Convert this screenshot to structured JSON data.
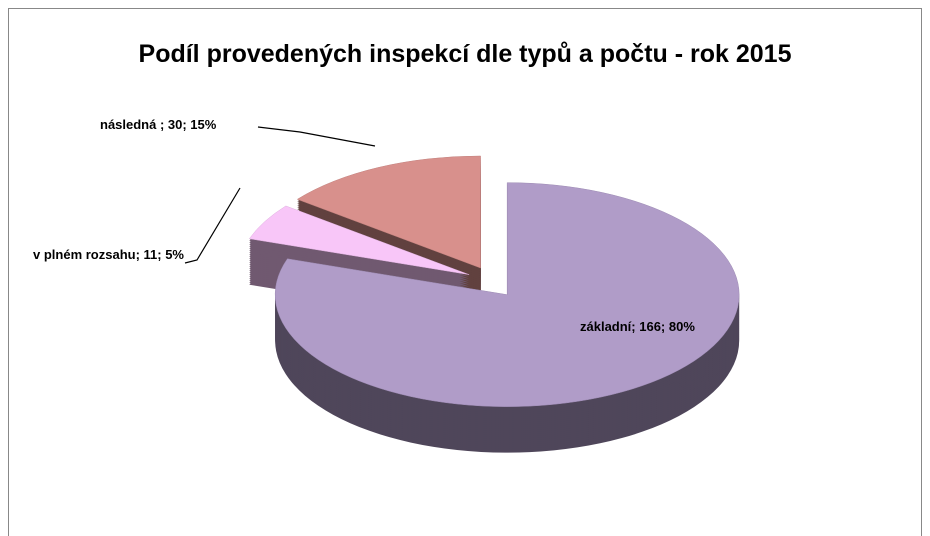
{
  "chart_data": {
    "type": "pie3d",
    "title": "Podíl provedených inspekcí dle typů a počtu - rok 2015",
    "categories": [
      "základní",
      "v plném rozsahu",
      "následná"
    ],
    "values": [
      166,
      11,
      30
    ],
    "value_labels": [
      "základní; 166; 80%",
      "v plném rozsahu; 11; 5%",
      "následná ; 30; 15%"
    ],
    "colors": [
      "#b09cc8",
      "#f8c6f8",
      "#d8908c"
    ]
  }
}
